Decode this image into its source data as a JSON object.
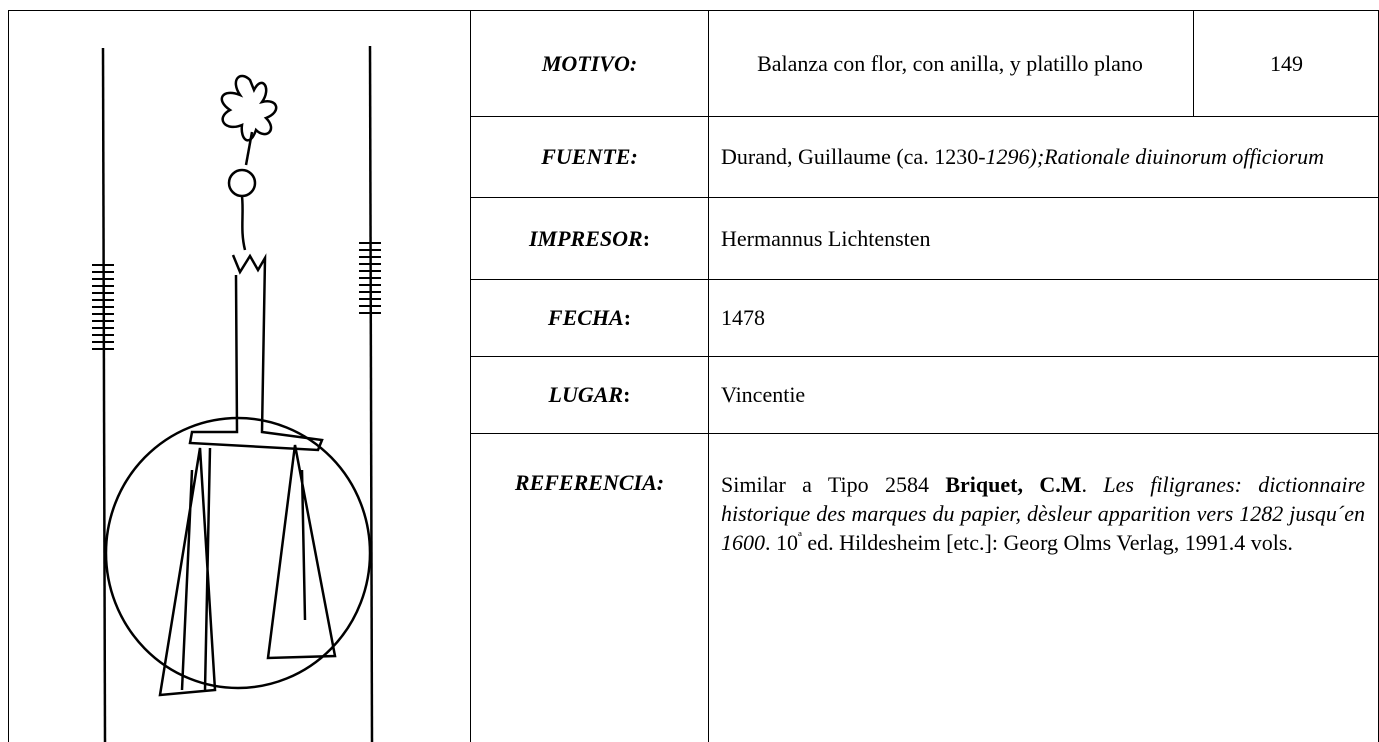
{
  "rows": [
    {
      "label": [
        {
          "text": "MOTIVO:",
          "style": "bold-italic"
        }
      ],
      "value": [
        {
          "text": "Balanza con flor, con anilla, y platillo plano",
          "style": "normal"
        }
      ],
      "number": "149"
    },
    {
      "label": [
        {
          "text": "FUENTE:",
          "style": "bold-italic"
        }
      ],
      "value": [
        {
          "text": "Durand, Guillaume (ca. 1230-",
          "style": "normal"
        },
        {
          "text": "1296);Rationale diuinorum officiorum",
          "style": "italic"
        }
      ]
    },
    {
      "label": [
        {
          "text": "IMPRESOR",
          "style": "bold-italic"
        },
        {
          "text": ":",
          "style": "bold"
        }
      ],
      "value": [
        {
          "text": "Hermannus Lichtensten",
          "style": "normal"
        }
      ]
    },
    {
      "label": [
        {
          "text": "FECHA",
          "style": "bold-italic"
        },
        {
          "text": ":",
          "style": "bold"
        }
      ],
      "value": [
        {
          "text": "1478",
          "style": "normal"
        }
      ]
    },
    {
      "label": [
        {
          "text": "LUGAR",
          "style": "bold-italic"
        },
        {
          "text": ":",
          "style": "bold"
        }
      ],
      "value": [
        {
          "text": "Vincentie",
          "style": "normal"
        }
      ]
    },
    {
      "label": [
        {
          "text": "REFERENCIA:",
          "style": "bold-italic"
        }
      ],
      "value": [
        {
          "text": "Similar a Tipo 2584 ",
          "style": "normal"
        },
        {
          "text": "Briquet, C.M",
          "style": "bold"
        },
        {
          "text": ". ",
          "style": "normal"
        },
        {
          "text": "Les filigranes: dictionnaire historique des marques du papier, dèsleur apparition vers 1282 jusqu´en 1600",
          "style": "italic"
        },
        {
          "text": ". 10",
          "style": "normal"
        },
        {
          "text": "ª",
          "style": "superscript"
        },
        {
          "text": " ed. Hildesheim [etc.]: Georg Olms Verlag, 1991.4 vols.",
          "style": "normal"
        }
      ]
    }
  ]
}
